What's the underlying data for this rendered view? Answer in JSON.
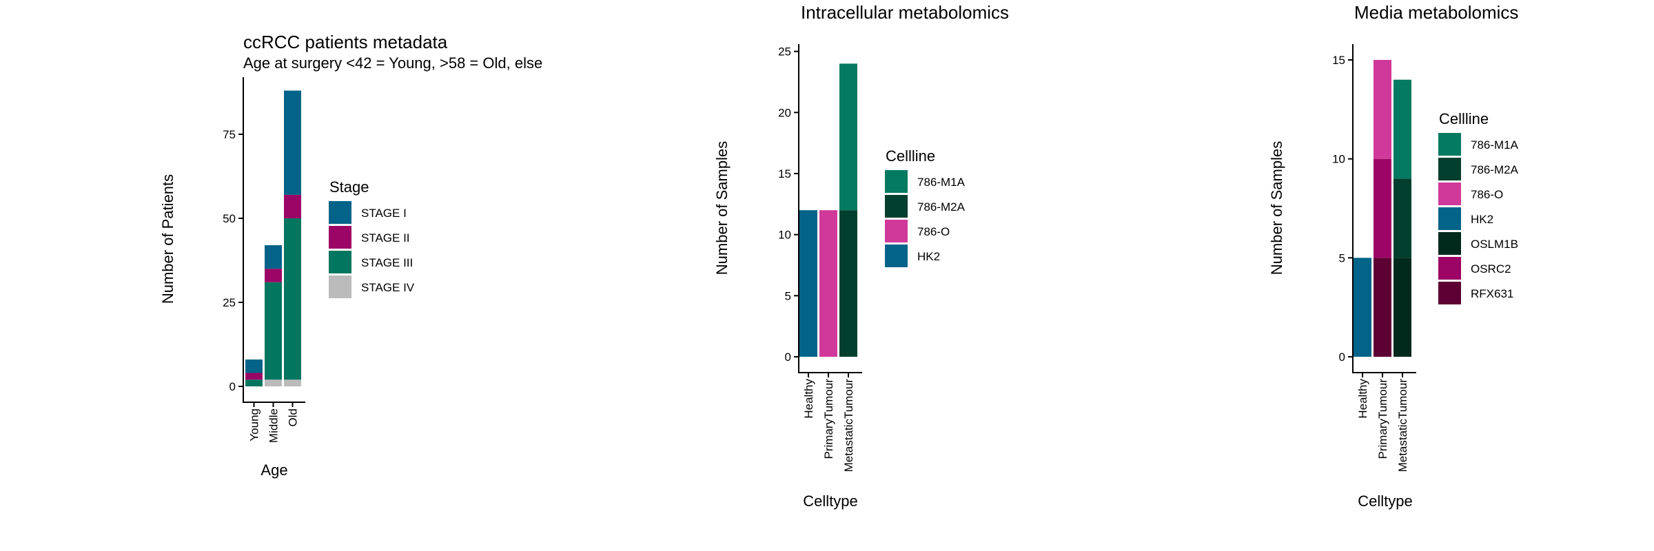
{
  "colors": {
    "STAGE I": "#046388",
    "STAGE II": "#9b0565",
    "STAGE III": "#037660",
    "STAGE IV": "#bbbbbb",
    "786-M1A": "#047a60",
    "786-M2A": "#023f2e",
    "786-O": "#d0399a",
    "HK2": "#046388",
    "OSLM1B": "#022a1c",
    "OSRC2": "#9c0565",
    "RFX631": "#5d0033"
  },
  "chart_data": [
    {
      "type": "bar",
      "stacked": true,
      "title": "ccRCC patients metadata",
      "subtitle": "Age at surgery <42 = Young,  >58 = Old, else",
      "xlabel": "Age",
      "ylabel": "Number of Patients",
      "categories": [
        "Young",
        "Middle",
        "Old"
      ],
      "yticks": [
        0,
        25,
        50,
        75
      ],
      "ylim": [
        0,
        92
      ],
      "legend_title": "Stage",
      "legend_position": "right",
      "series": [
        {
          "name": "STAGE IV",
          "values": [
            0,
            2,
            2
          ]
        },
        {
          "name": "STAGE III",
          "values": [
            2,
            29,
            48
          ]
        },
        {
          "name": "STAGE II",
          "values": [
            2,
            4,
            7
          ]
        },
        {
          "name": "STAGE I",
          "values": [
            4,
            7,
            31
          ]
        }
      ],
      "legend_order": [
        "STAGE I",
        "STAGE II",
        "STAGE III",
        "STAGE IV"
      ]
    },
    {
      "type": "bar",
      "stacked": true,
      "title": "Intracellular metabolomics",
      "xlabel": "Celltype",
      "ylabel": "Number of Samples",
      "categories": [
        "Healthy",
        "PrimaryTumour",
        "MetastaticTumour"
      ],
      "yticks": [
        0,
        5,
        10,
        15,
        20,
        25
      ],
      "ylim": [
        0,
        25.6
      ],
      "legend_title": "Cellline",
      "legend_position": "right",
      "series": [
        {
          "name": "HK2",
          "values": [
            12,
            0,
            0
          ]
        },
        {
          "name": "786-O",
          "values": [
            0,
            12,
            0
          ]
        },
        {
          "name": "786-M2A",
          "values": [
            0,
            0,
            12
          ]
        },
        {
          "name": "786-M1A",
          "values": [
            0,
            0,
            12
          ]
        }
      ],
      "legend_order": [
        "786-M1A",
        "786-M2A",
        "786-O",
        "HK2"
      ]
    },
    {
      "type": "bar",
      "stacked": true,
      "title": "Media metabolomics",
      "xlabel": "Celltype",
      "ylabel": "Number of Samples",
      "categories": [
        "Healthy",
        "PrimaryTumour",
        "MetastaticTumour"
      ],
      "yticks": [
        0,
        5,
        10,
        15
      ],
      "ylim": [
        0,
        15.8
      ],
      "legend_title": "Cellline",
      "legend_position": "right",
      "series": [
        {
          "name": "HK2",
          "values": [
            5,
            0,
            0
          ]
        },
        {
          "name": "RFX631",
          "values": [
            0,
            5,
            0
          ]
        },
        {
          "name": "OSRC2",
          "values": [
            0,
            5,
            0
          ]
        },
        {
          "name": "786-O",
          "values": [
            0,
            5,
            0
          ]
        },
        {
          "name": "OSLM1B",
          "values": [
            0,
            0,
            5
          ]
        },
        {
          "name": "786-M2A",
          "values": [
            0,
            0,
            4
          ]
        },
        {
          "name": "786-M1A",
          "values": [
            0,
            0,
            5
          ]
        }
      ],
      "legend_order": [
        "786-M1A",
        "786-M2A",
        "786-O",
        "HK2",
        "OSLM1B",
        "OSRC2",
        "RFX631"
      ]
    }
  ]
}
